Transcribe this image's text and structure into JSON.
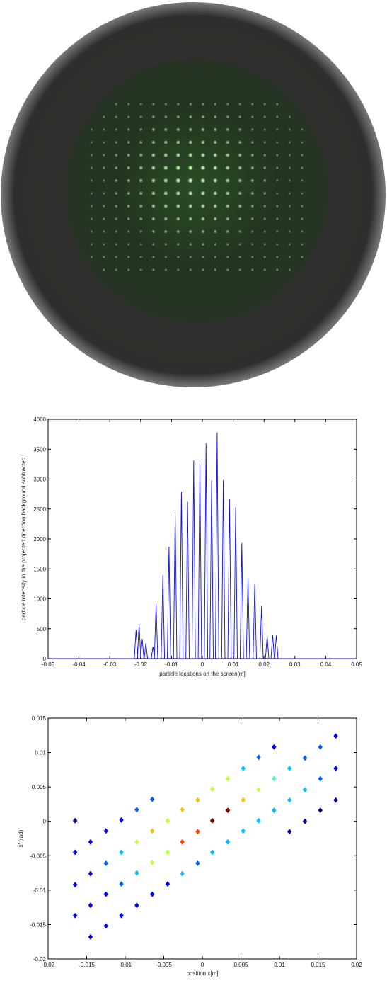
{
  "colors": {
    "screen_rim": "#2d2e2b",
    "screen_glow": "#23331f",
    "spot": "#b8f0b0",
    "profile_line": "#1010e0",
    "phase_palette": [
      "#00008f",
      "#0000ff",
      "#0060ff",
      "#00bfff",
      "#40ffbf",
      "#bfff40",
      "#ffbf00",
      "#ff4000",
      "#bf0000",
      "#800000"
    ]
  },
  "chart_data": [
    {
      "type": "image",
      "description_role": "phosphor screen photograph",
      "grid_rows": 14,
      "grid_cols": 18
    },
    {
      "type": "line",
      "title": "",
      "xlabel": "particle locations on the screen[m]",
      "ylabel": "particle intensity in the projected direction background subtracted",
      "xlim": [
        -0.05,
        0.05
      ],
      "ylim": [
        0,
        4000
      ],
      "xticks": [
        "-0.05",
        "-0.04",
        "-0.03",
        "-0.02",
        "-0.01",
        "0",
        "0.01",
        "0.02",
        "0.03",
        "0.04",
        "0.05"
      ],
      "yticks": [
        "0",
        "500",
        "1000",
        "1500",
        "2000",
        "2500",
        "3000",
        "3500",
        "4000"
      ],
      "peaks": [
        {
          "x": -0.0215,
          "y": 480
        },
        {
          "x": -0.0205,
          "y": 580
        },
        {
          "x": -0.0195,
          "y": 330
        },
        {
          "x": -0.0183,
          "y": 260
        },
        {
          "x": -0.016,
          "y": 200
        },
        {
          "x": -0.015,
          "y": 920
        },
        {
          "x": -0.0128,
          "y": 1400
        },
        {
          "x": -0.0108,
          "y": 1870
        },
        {
          "x": -0.0088,
          "y": 2450
        },
        {
          "x": -0.0068,
          "y": 2790
        },
        {
          "x": -0.0048,
          "y": 2620
        },
        {
          "x": -0.0028,
          "y": 3310
        },
        {
          "x": -0.0008,
          "y": 3270
        },
        {
          "x": 0.0012,
          "y": 3600
        },
        {
          "x": 0.003,
          "y": 2980
        },
        {
          "x": 0.0048,
          "y": 3780
        },
        {
          "x": 0.0068,
          "y": 2980
        },
        {
          "x": 0.0088,
          "y": 2670
        },
        {
          "x": 0.0108,
          "y": 2530
        },
        {
          "x": 0.0128,
          "y": 1930
        },
        {
          "x": 0.0148,
          "y": 1350
        },
        {
          "x": 0.017,
          "y": 1250
        },
        {
          "x": 0.0192,
          "y": 880
        },
        {
          "x": 0.021,
          "y": 380
        },
        {
          "x": 0.0228,
          "y": 400
        },
        {
          "x": 0.024,
          "y": 390
        }
      ]
    },
    {
      "type": "scatter",
      "title": "",
      "xlabel": "position x[m]",
      "ylabel": "x' (rad)",
      "xlim": [
        -0.02,
        0.02
      ],
      "ylim": [
        -0.02,
        0.015
      ],
      "xticks": [
        "-0.02",
        "-0.015",
        "-0.01",
        "-0.005",
        "0",
        "0.005",
        "0.01",
        "0.015",
        "0.02"
      ],
      "yticks": [
        "-0.02",
        "-0.015",
        "-0.01",
        "-0.005",
        "0",
        "0.005",
        "0.01",
        "0.015"
      ],
      "points": [
        {
          "x": -0.0165,
          "y": 0.0001,
          "c": 0
        },
        {
          "x": -0.0165,
          "y": -0.0045,
          "c": 1
        },
        {
          "x": -0.0165,
          "y": -0.0092,
          "c": 1
        },
        {
          "x": -0.0165,
          "y": -0.0137,
          "c": 1
        },
        {
          "x": -0.0145,
          "y": -0.003,
          "c": 1
        },
        {
          "x": -0.0145,
          "y": -0.0076,
          "c": 1
        },
        {
          "x": -0.0145,
          "y": -0.0122,
          "c": 1
        },
        {
          "x": -0.0145,
          "y": -0.0168,
          "c": 1
        },
        {
          "x": -0.0125,
          "y": -0.0014,
          "c": 1
        },
        {
          "x": -0.0125,
          "y": -0.0061,
          "c": 2
        },
        {
          "x": -0.0125,
          "y": -0.0106,
          "c": 1
        },
        {
          "x": -0.0125,
          "y": -0.0152,
          "c": 1
        },
        {
          "x": -0.0105,
          "y": 0.0002,
          "c": 1
        },
        {
          "x": -0.0105,
          "y": -0.0045,
          "c": 3
        },
        {
          "x": -0.0105,
          "y": -0.0091,
          "c": 2
        },
        {
          "x": -0.0105,
          "y": -0.0137,
          "c": 1
        },
        {
          "x": -0.0085,
          "y": 0.0017,
          "c": 2
        },
        {
          "x": -0.0085,
          "y": -0.003,
          "c": 5
        },
        {
          "x": -0.0085,
          "y": -0.0075,
          "c": 3
        },
        {
          "x": -0.0085,
          "y": -0.0122,
          "c": 1
        },
        {
          "x": -0.0065,
          "y": 0.0032,
          "c": 2
        },
        {
          "x": -0.0065,
          "y": -0.0014,
          "c": 6
        },
        {
          "x": -0.0065,
          "y": -0.006,
          "c": 5
        },
        {
          "x": -0.0065,
          "y": -0.0106,
          "c": 1
        },
        {
          "x": -0.0045,
          "y": 0.0001,
          "c": 5
        },
        {
          "x": -0.0045,
          "y": -0.0045,
          "c": 5
        },
        {
          "x": -0.0045,
          "y": -0.0091,
          "c": 1
        },
        {
          "x": -0.0026,
          "y": 0.0017,
          "c": 6
        },
        {
          "x": -0.0026,
          "y": -0.003,
          "c": 7
        },
        {
          "x": -0.0026,
          "y": -0.0076,
          "c": 3
        },
        {
          "x": -0.0006,
          "y": 0.0031,
          "c": 6
        },
        {
          "x": -0.0006,
          "y": -0.0015,
          "c": 7
        },
        {
          "x": -0.0006,
          "y": -0.0061,
          "c": 2
        },
        {
          "x": 0.0013,
          "y": 0.0047,
          "c": 5
        },
        {
          "x": 0.0013,
          "y": 0.0001,
          "c": 9
        },
        {
          "x": 0.0013,
          "y": -0.0045,
          "c": 3
        },
        {
          "x": 0.0033,
          "y": 0.0062,
          "c": 5
        },
        {
          "x": 0.0033,
          "y": 0.0016,
          "c": 9
        },
        {
          "x": 0.0033,
          "y": -0.003,
          "c": 3
        },
        {
          "x": 0.0053,
          "y": 0.0077,
          "c": 3
        },
        {
          "x": 0.0053,
          "y": 0.0031,
          "c": 6
        },
        {
          "x": 0.0053,
          "y": -0.0014,
          "c": 3
        },
        {
          "x": 0.0073,
          "y": 0.0093,
          "c": 2
        },
        {
          "x": 0.0073,
          "y": 0.0046,
          "c": 5
        },
        {
          "x": 0.0073,
          "y": 0.0001,
          "c": 3
        },
        {
          "x": 0.0093,
          "y": 0.0108,
          "c": 1
        },
        {
          "x": 0.0093,
          "y": 0.0062,
          "c": 4
        },
        {
          "x": 0.0093,
          "y": 0.0016,
          "c": 3
        },
        {
          "x": 0.0113,
          "y": 0.0077,
          "c": 3
        },
        {
          "x": 0.0113,
          "y": 0.0031,
          "c": 3
        },
        {
          "x": 0.0113,
          "y": -0.0015,
          "c": 0
        },
        {
          "x": 0.0133,
          "y": 0.0092,
          "c": 2
        },
        {
          "x": 0.0133,
          "y": 0.0046,
          "c": 3
        },
        {
          "x": 0.0133,
          "y": 0.0,
          "c": 0
        },
        {
          "x": 0.0153,
          "y": 0.0108,
          "c": 2
        },
        {
          "x": 0.0153,
          "y": 0.0062,
          "c": 2
        },
        {
          "x": 0.0153,
          "y": 0.0016,
          "c": 0
        },
        {
          "x": 0.0173,
          "y": 0.0124,
          "c": 1
        },
        {
          "x": 0.0173,
          "y": 0.0077,
          "c": 1
        },
        {
          "x": 0.0173,
          "y": 0.0031,
          "c": 0
        }
      ]
    }
  ]
}
